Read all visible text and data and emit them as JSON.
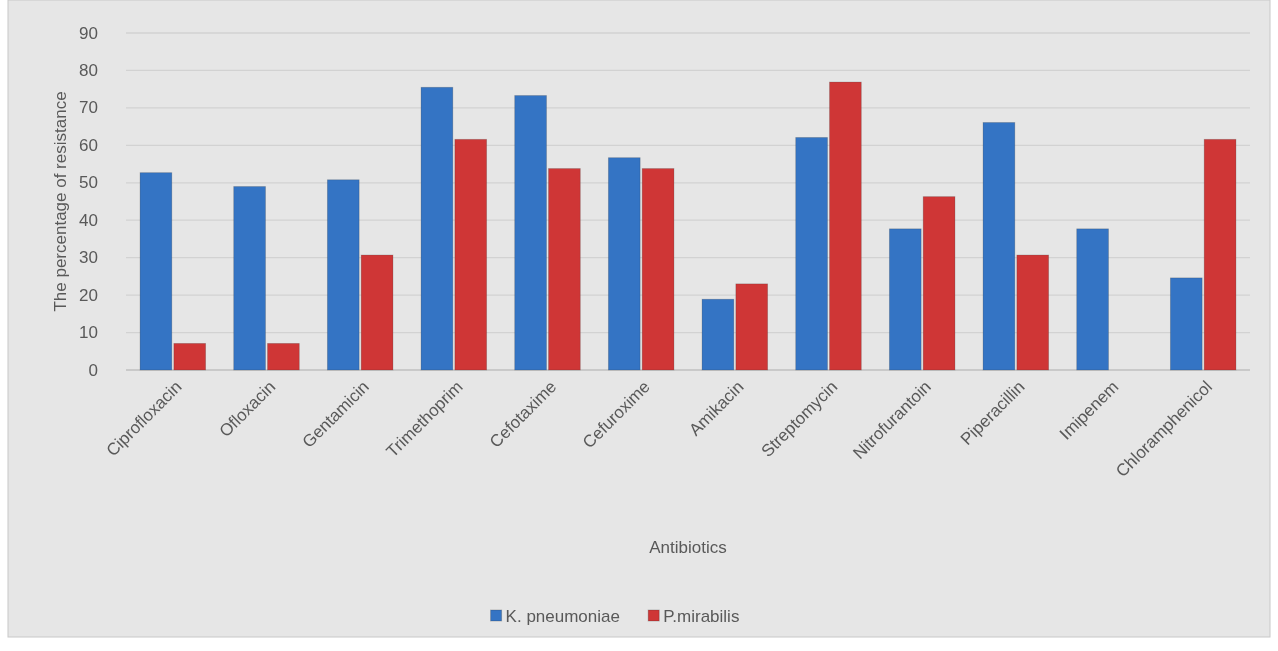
{
  "chart_data": {
    "type": "bar",
    "xlabel": "Antibiotics",
    "ylabel": "The percentage of resistance",
    "categories": [
      "Ciprofloxacin",
      "Ofloxacin",
      "Gentamicin",
      "Trimethoprim",
      "Cefotaxime",
      "Cefuroxime",
      "Amikacin",
      "Streptomycin",
      "Nitrofurantoin",
      "Piperacillin",
      "Imipenem",
      "Chloramphenicol"
    ],
    "series": [
      {
        "name": "K. pneumoniae",
        "color": "#3474c4",
        "values": [
          52.7,
          49.0,
          50.8,
          75.5,
          73.3,
          56.7,
          18.9,
          62.1,
          37.7,
          66.1,
          37.7,
          24.6
        ]
      },
      {
        "name": "P.mirabilis",
        "color": "#cf3636",
        "values": [
          7.1,
          7.1,
          30.7,
          61.6,
          53.8,
          53.8,
          23.0,
          76.9,
          46.3,
          30.7,
          null,
          61.6
        ]
      }
    ],
    "ylim": [
      0,
      90
    ],
    "yticks": [
      0,
      10,
      20,
      30,
      40,
      50,
      60,
      70,
      80,
      90
    ],
    "grid": "y",
    "legend": "bottom"
  }
}
